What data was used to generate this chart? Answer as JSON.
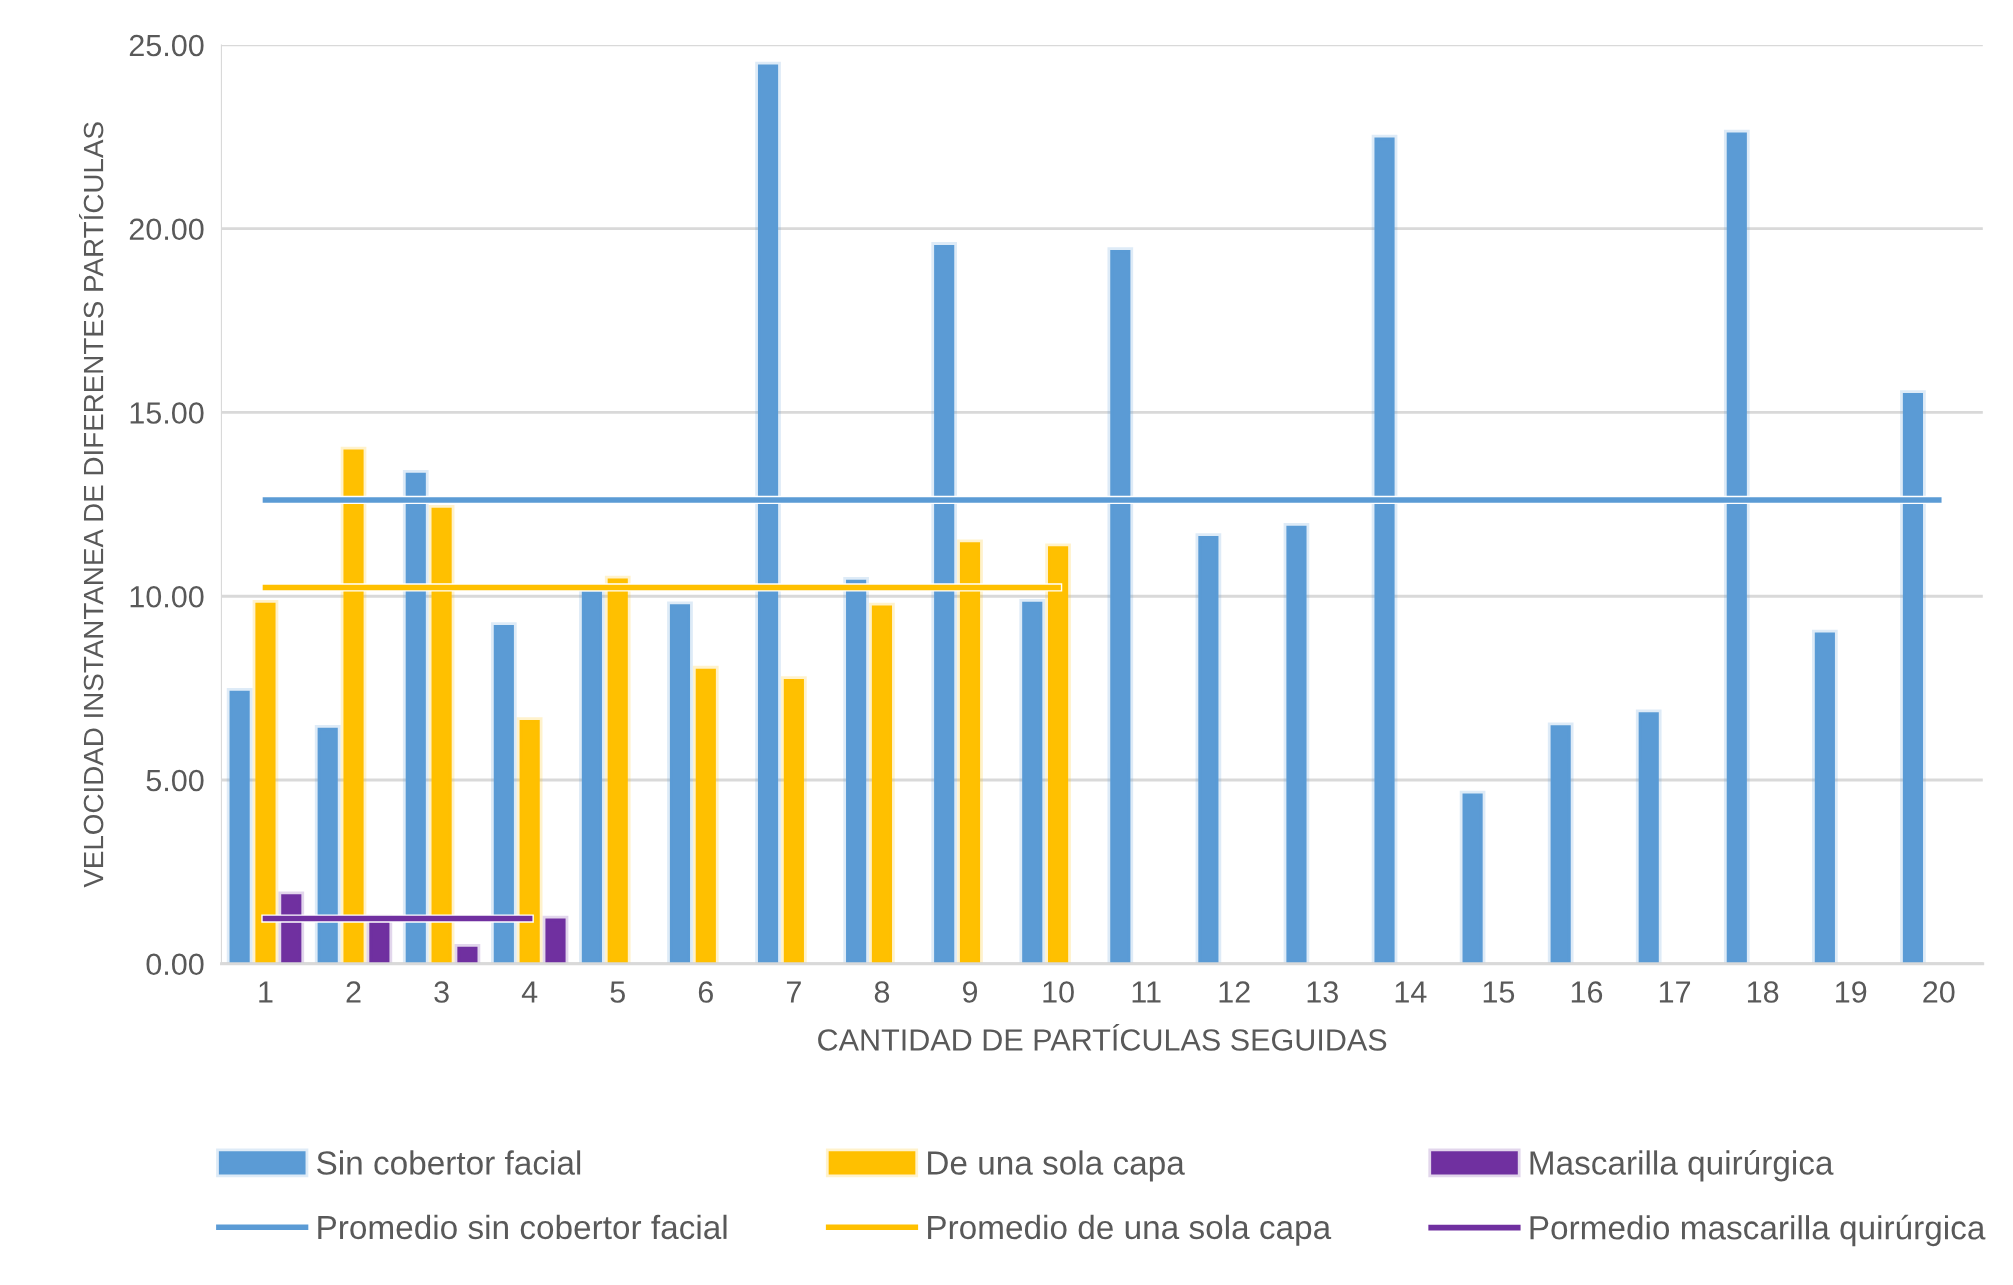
{
  "chart_data": {
    "type": "bar",
    "xlabel": "CANTIDAD DE PARTÍCULAS SEGUIDAS",
    "ylabel": "VELOCIDAD INSTANTANEA DE DIFERENTES PARTÍCULAS",
    "categories": [
      "1",
      "2",
      "3",
      "4",
      "5",
      "6",
      "7",
      "8",
      "9",
      "10",
      "11",
      "12",
      "13",
      "14",
      "15",
      "16",
      "17",
      "18",
      "19",
      "20"
    ],
    "series": [
      {
        "name": "Sin cobertor facial",
        "color": "#5b9bd5",
        "values": [
          7.43,
          6.42,
          13.36,
          9.22,
          10.13,
          9.78,
          24.47,
          10.45,
          19.56,
          9.85,
          19.42,
          11.64,
          11.92,
          22.48,
          4.63,
          6.49,
          6.84,
          22.62,
          9.01,
          15.53
        ]
      },
      {
        "name": "De una sola capa",
        "color": "#ffc000",
        "values": [
          9.82,
          13.99,
          12.41,
          6.63,
          10.48,
          8.03,
          7.75,
          9.75,
          11.47,
          11.36,
          null,
          null,
          null,
          null,
          null,
          null,
          null,
          null,
          null,
          null
        ]
      },
      {
        "name": "Mascarilla quirúrgica",
        "color": "#7030a0",
        "values": [
          1.89,
          1.26,
          0.46,
          1.23,
          null,
          null,
          null,
          null,
          null,
          null,
          null,
          null,
          null,
          null,
          null,
          null,
          null,
          null,
          null,
          null
        ]
      },
      {
        "name": "Promedio sin cobertor facial",
        "type": "line",
        "color": "#5b9bd5",
        "values": [
          12.62,
          12.62,
          12.62,
          12.62,
          12.62,
          12.62,
          12.62,
          12.62,
          12.62,
          12.62,
          12.62,
          12.62,
          12.62,
          12.62,
          12.62,
          12.62,
          12.62,
          12.62,
          12.62,
          12.62
        ]
      },
      {
        "name": "Promedio de una sola capa",
        "type": "line",
        "color": "#ffc000",
        "values": [
          10.24,
          10.24,
          10.24,
          10.24,
          10.24,
          10.24,
          10.24,
          10.24,
          10.24,
          10.24,
          null,
          null,
          null,
          null,
          null,
          null,
          null,
          null,
          null,
          null
        ]
      },
      {
        "name": "Pormedio mascarilla quirúrgica",
        "type": "line",
        "color": "#7030a0",
        "values": [
          1.23,
          1.23,
          1.23,
          1.23,
          null,
          null,
          null,
          null,
          null,
          null,
          null,
          null,
          null,
          null,
          null,
          null,
          null,
          null,
          null,
          null
        ]
      }
    ],
    "ylim": [
      0,
      25
    ],
    "yticks": [
      {
        "value": 0,
        "label": "0.00"
      },
      {
        "value": 5,
        "label": "5.00"
      },
      {
        "value": 10,
        "label": "10.00"
      },
      {
        "value": 15,
        "label": "15.00"
      },
      {
        "value": 20,
        "label": "20.00"
      },
      {
        "value": 25,
        "label": "25.00"
      }
    ],
    "grid": "y",
    "legend": "bottom",
    "marker": "none",
    "line_style": "solid"
  }
}
